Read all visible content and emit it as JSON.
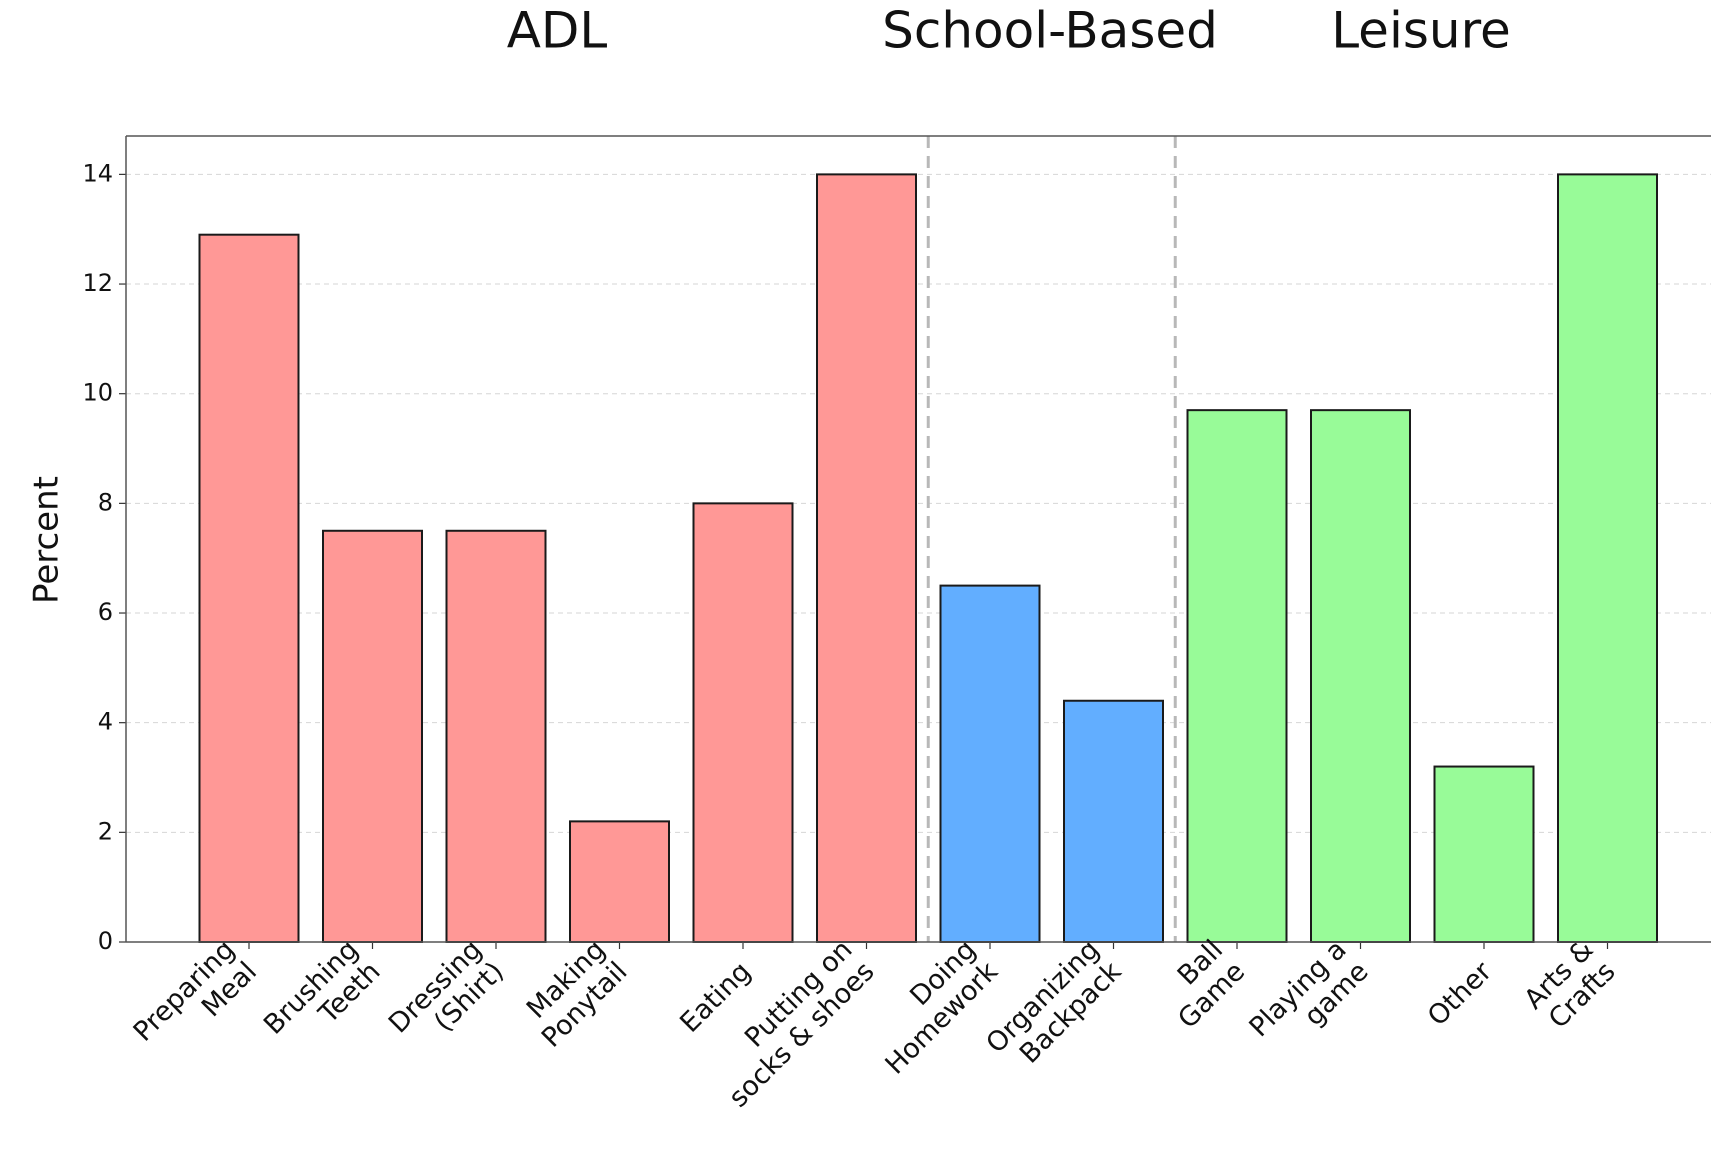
{
  "chart_data": {
    "type": "bar",
    "ylabel": "Percent",
    "xlabel": "",
    "ylim": [
      0,
      14.7
    ],
    "yticks": [
      0,
      2,
      4,
      6,
      8,
      10,
      12,
      14
    ],
    "grid": "horizontal dashed",
    "groups": [
      {
        "name": "ADL",
        "color": "#ff9896",
        "start": 0,
        "end": 5
      },
      {
        "name": "School-Based",
        "color": "#62aeff",
        "start": 6,
        "end": 7
      },
      {
        "name": "Leisure",
        "color": "#98fb98",
        "start": 8,
        "end": 11
      }
    ],
    "categories": [
      {
        "lines": [
          "Preparing",
          "Meal"
        ],
        "value": 12.9,
        "group": "ADL"
      },
      {
        "lines": [
          "Brushing",
          "Teeth"
        ],
        "value": 7.5,
        "group": "ADL"
      },
      {
        "lines": [
          "Dressing",
          "(Shirt)"
        ],
        "value": 7.5,
        "group": "ADL"
      },
      {
        "lines": [
          "Making",
          "Ponytail"
        ],
        "value": 2.2,
        "group": "ADL"
      },
      {
        "lines": [
          "Eating"
        ],
        "value": 8.0,
        "group": "ADL"
      },
      {
        "lines": [
          "Putting on",
          "socks & shoes"
        ],
        "value": 14.0,
        "group": "ADL"
      },
      {
        "lines": [
          "Doing",
          "Homework"
        ],
        "value": 6.5,
        "group": "School-Based"
      },
      {
        "lines": [
          "Organizing",
          "Backpack"
        ],
        "value": 4.4,
        "group": "School-Based"
      },
      {
        "lines": [
          "Ball",
          "Game"
        ],
        "value": 9.7,
        "group": "Leisure"
      },
      {
        "lines": [
          "Playing a",
          "game"
        ],
        "value": 9.7,
        "group": "Leisure"
      },
      {
        "lines": [
          "Other"
        ],
        "value": 3.2,
        "group": "Leisure"
      },
      {
        "lines": [
          "Arts &",
          "Crafts"
        ],
        "value": 14.0,
        "group": "Leisure"
      }
    ],
    "separators_after": [
      5,
      7
    ]
  }
}
